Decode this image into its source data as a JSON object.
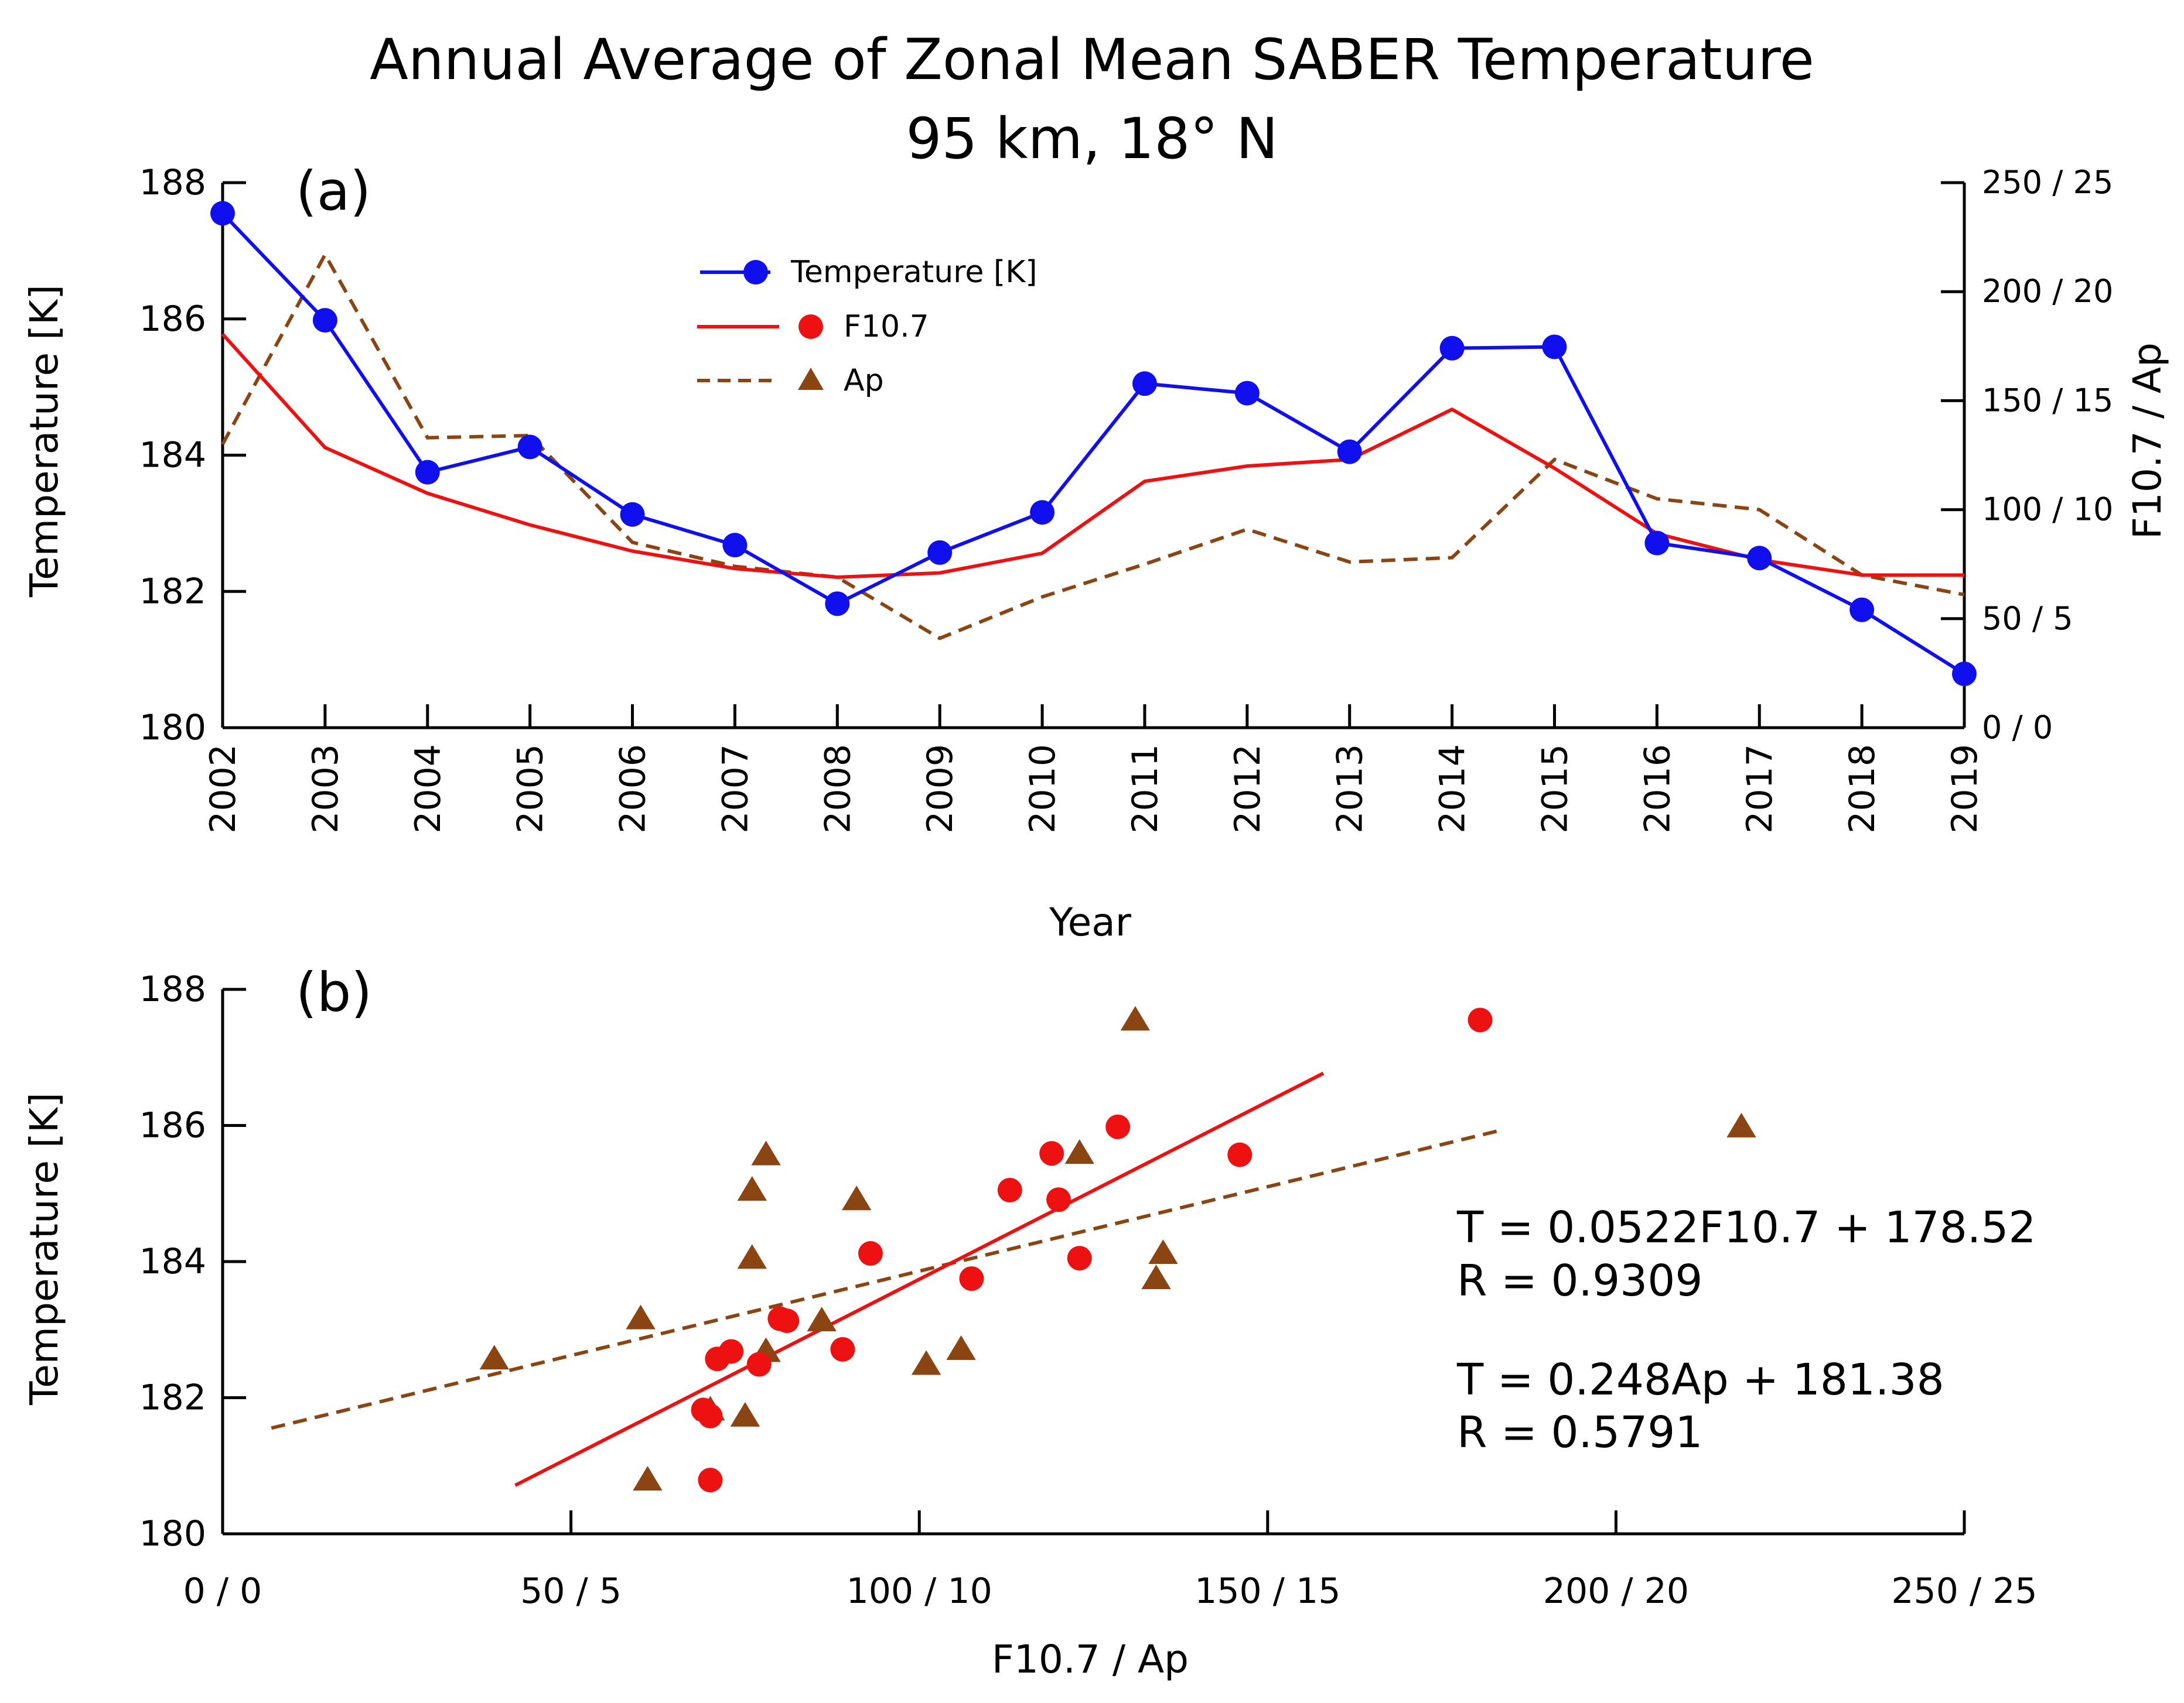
{
  "title": "Annual Average of Zonal Mean SABER Temperature",
  "subtitle": "95 km, 18° N",
  "colors": {
    "temperature": "#1010ee",
    "f107": "#ee1111",
    "ap": "#8b4513",
    "axis": "#000000"
  },
  "chart_data": [
    {
      "type": "line",
      "panel_label": "(a)",
      "xlabel": "Year",
      "ylabel": "Temperature [K]",
      "y2label": "F10.7 / Ap",
      "x": [
        2002,
        2003,
        2004,
        2005,
        2006,
        2007,
        2008,
        2009,
        2010,
        2011,
        2012,
        2013,
        2014,
        2015,
        2016,
        2017,
        2018,
        2019
      ],
      "ylim": [
        180,
        188
      ],
      "y2lim": [
        0,
        250
      ],
      "yticks": [
        "180",
        "182",
        "184",
        "186",
        "188"
      ],
      "y2ticks": [
        "0 / 0",
        "50 / 5",
        "100 / 10",
        "150 / 15",
        "200 / 20",
        "250 / 25"
      ],
      "legend_position": "upper-left",
      "series": [
        {
          "name": "Temperature [K]",
          "axis": "left",
          "style": "solid-markers",
          "values": [
            187.55,
            185.98,
            183.75,
            184.12,
            183.13,
            182.68,
            181.82,
            182.57,
            183.16,
            185.05,
            184.91,
            184.05,
            185.57,
            185.59,
            182.71,
            182.49,
            181.73,
            180.79
          ]
        },
        {
          "name": "F10.7",
          "axis": "right",
          "style": "solid",
          "values": [
            180.5,
            128.5,
            107.5,
            93,
            81,
            73,
            69,
            71,
            80,
            113,
            120,
            123,
            146,
            119,
            89,
            77,
            70,
            70
          ]
        },
        {
          "name": "Ap",
          "axis": "right",
          "scale_note": "Ap shown as Ap x 10 on the shared F10.7 / Ap axis",
          "style": "dashed",
          "values": [
            130,
            217,
            133,
            134,
            85,
            74,
            69,
            41,
            60,
            75,
            91,
            76,
            78,
            123,
            105,
            100,
            70,
            61
          ]
        }
      ]
    },
    {
      "type": "scatter",
      "panel_label": "(b)",
      "xlabel": "F10.7 / Ap",
      "ylabel": "Temperature [K]",
      "xlim": [
        0,
        250
      ],
      "ylim": [
        180,
        188
      ],
      "xticks": [
        "0 / 0",
        "50 / 5",
        "100 / 10",
        "150 / 15",
        "200 / 20",
        "250 / 25"
      ],
      "yticks": [
        "180",
        "182",
        "184",
        "186",
        "188"
      ],
      "series": [
        {
          "name": "F10.7",
          "marker": "circle",
          "x": [
            180.5,
            128.5,
            107.5,
            93,
            81,
            73,
            69,
            71,
            80,
            113,
            120,
            123,
            146,
            119,
            89,
            77,
            70,
            70
          ],
          "y": [
            187.55,
            185.98,
            183.75,
            184.12,
            183.13,
            182.68,
            181.82,
            182.57,
            183.16,
            185.05,
            184.91,
            184.05,
            185.57,
            185.59,
            182.71,
            182.49,
            181.73,
            180.79
          ],
          "fit": {
            "x_range": [
              42,
              158
            ],
            "style": "solid"
          }
        },
        {
          "name": "Ap",
          "marker": "triangle",
          "x": [
            131,
            218,
            134,
            135,
            86,
            78,
            70,
            39,
            60,
            76,
            91,
            76,
            78,
            123,
            106,
            101,
            75,
            61
          ],
          "y": [
            187.55,
            185.98,
            183.75,
            184.12,
            183.13,
            182.68,
            181.82,
            182.57,
            183.16,
            185.05,
            184.91,
            184.05,
            185.57,
            185.59,
            182.71,
            182.49,
            181.73,
            180.79
          ],
          "fit": {
            "x_range": [
              7,
              184
            ],
            "style": "dashed"
          }
        }
      ],
      "annotations": {
        "f107_equation": "T = 0.0522F10.7 + 178.52",
        "f107_r": "R = 0.9309",
        "ap_equation": "T = 0.248Ap + 181.38",
        "ap_r": "R = 0.5791"
      }
    }
  ]
}
